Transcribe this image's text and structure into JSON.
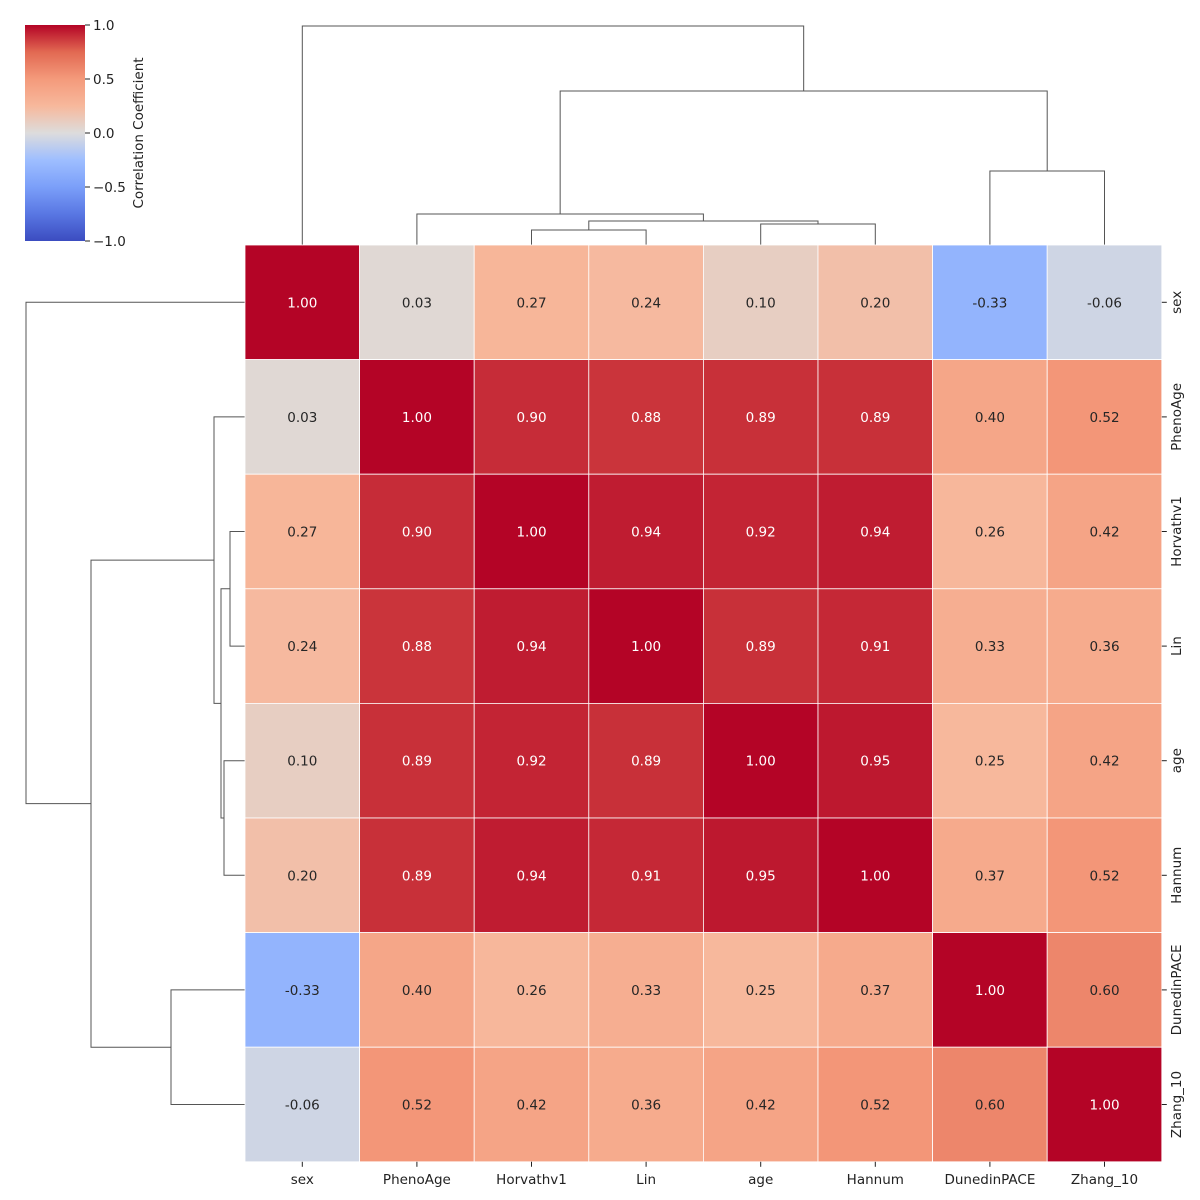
{
  "chart_data": {
    "type": "heatmap",
    "labels": [
      "sex",
      "PhenoAge",
      "Horvathv1",
      "Lin",
      "age",
      "Hannum",
      "DunedinPACE",
      "Zhang_10"
    ],
    "matrix": [
      [
        1.0,
        0.03,
        0.27,
        0.24,
        0.1,
        0.2,
        -0.33,
        -0.06
      ],
      [
        0.03,
        1.0,
        0.9,
        0.88,
        0.89,
        0.89,
        0.4,
        0.52
      ],
      [
        0.27,
        0.9,
        1.0,
        0.94,
        0.92,
        0.94,
        0.26,
        0.42
      ],
      [
        0.24,
        0.88,
        0.94,
        1.0,
        0.89,
        0.91,
        0.33,
        0.36
      ],
      [
        0.1,
        0.89,
        0.92,
        0.89,
        1.0,
        0.95,
        0.25,
        0.42
      ],
      [
        0.2,
        0.89,
        0.94,
        0.91,
        0.95,
        1.0,
        0.37,
        0.52
      ],
      [
        -0.33,
        0.4,
        0.26,
        0.33,
        0.25,
        0.37,
        1.0,
        0.6
      ],
      [
        -0.06,
        0.52,
        0.42,
        0.36,
        0.42,
        0.52,
        0.6,
        1.0
      ]
    ],
    "value_format": "0.00",
    "colormap": "coolwarm",
    "vmin": -1.0,
    "vmax": 1.0,
    "colorbar": {
      "label": "Correlation Coefficient",
      "ticks": [
        "1.0",
        "0.5",
        "0.0",
        "−0.5",
        "−1.0"
      ],
      "tick_values": [
        1.0,
        0.5,
        0.0,
        -0.5,
        -1.0
      ],
      "placement": "top-left"
    },
    "dendrogram": {
      "placement": "top and left",
      "merges": [
        {
          "a": "Horvathv1",
          "b": "Lin",
          "order": 1
        },
        {
          "a": "age",
          "b": "Hannum",
          "order": 2
        },
        {
          "a": "Horvathv1+Lin",
          "b": "age+Hannum",
          "order": 3
        },
        {
          "a": "PhenoAge",
          "b": "Horvathv1+Lin+age+Hannum",
          "order": 4
        },
        {
          "a": "DunedinPACE",
          "b": "Zhang_10",
          "order": 5
        },
        {
          "a": "PhenoAge cluster",
          "b": "DunedinPACE+Zhang_10",
          "order": 6
        },
        {
          "a": "sex",
          "b": "all others",
          "order": 7
        }
      ]
    },
    "title": "",
    "xlabel": "",
    "ylabel": ""
  }
}
